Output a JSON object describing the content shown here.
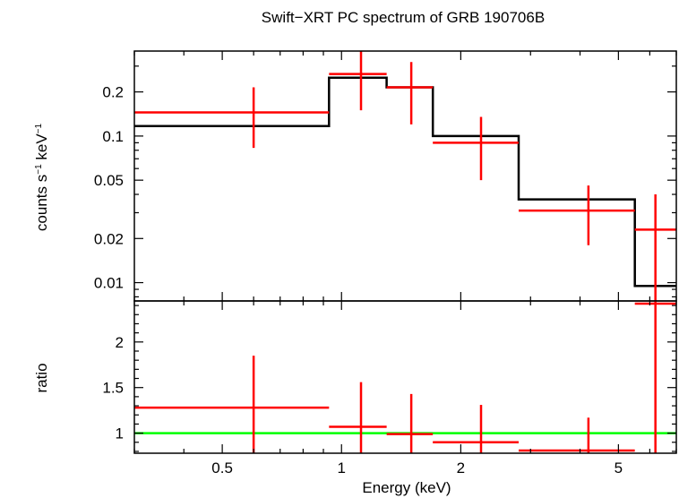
{
  "chart_data": [
    {
      "type": "line",
      "panel": "spectrum",
      "title": "Swift−XRT PC spectrum of GRB 190706B",
      "ylabel_main": "counts s",
      "ylabel_sup1": "−1",
      "ylabel_mid": " keV",
      "ylabel_sup2": "−1",
      "xscale": "log",
      "yscale": "log",
      "xlim": [
        0.3,
        7.0
      ],
      "ylim": [
        0.0075,
        0.38
      ],
      "yticks": [
        0.01,
        0.02,
        0.05,
        0.1,
        0.2
      ],
      "ytick_labels": [
        "0.01",
        "0.02",
        "0.05",
        "0.1",
        "0.2"
      ],
      "data": [
        {
          "x": 0.6,
          "xlo": 0.3,
          "xhi": 0.93,
          "y": 0.145,
          "ylo": 0.083,
          "yhi": 0.215
        },
        {
          "x": 1.12,
          "xlo": 0.93,
          "xhi": 1.3,
          "y": 0.265,
          "ylo": 0.15,
          "yhi": 0.38
        },
        {
          "x": 1.5,
          "xlo": 1.3,
          "xhi": 1.7,
          "y": 0.215,
          "ylo": 0.12,
          "yhi": 0.32
        },
        {
          "x": 2.25,
          "xlo": 1.7,
          "xhi": 2.8,
          "y": 0.09,
          "ylo": 0.05,
          "yhi": 0.135
        },
        {
          "x": 4.2,
          "xlo": 2.8,
          "xhi": 5.5,
          "y": 0.031,
          "ylo": 0.018,
          "yhi": 0.046
        },
        {
          "x": 6.2,
          "xlo": 5.5,
          "xhi": 7.0,
          "y": 0.023,
          "ylo": 0.0075,
          "yhi": 0.04
        }
      ],
      "model": {
        "edges": [
          0.3,
          0.93,
          1.3,
          1.7,
          2.8,
          5.5,
          7.0
        ],
        "values": [
          0.117,
          0.25,
          0.215,
          0.1,
          0.037,
          0.0095
        ]
      }
    },
    {
      "type": "line",
      "panel": "ratio",
      "ylabel": "ratio",
      "xlabel": "Energy (keV)",
      "xscale": "log",
      "xlim": [
        0.3,
        7.0
      ],
      "ylim": [
        0.78,
        2.45
      ],
      "yticks": [
        1,
        1.5,
        2
      ],
      "ytick_labels": [
        "1",
        "1.5",
        "2"
      ],
      "xticks": [
        0.5,
        1,
        2,
        5
      ],
      "xtick_labels": [
        "0.5",
        "1",
        "2",
        "5"
      ],
      "data": [
        {
          "x": 0.6,
          "xlo": 0.3,
          "xhi": 0.93,
          "y": 1.28,
          "ylo": 0.78,
          "yhi": 1.85
        },
        {
          "x": 1.12,
          "xlo": 0.93,
          "xhi": 1.3,
          "y": 1.07,
          "ylo": 0.78,
          "yhi": 1.56
        },
        {
          "x": 1.5,
          "xlo": 1.3,
          "xhi": 1.7,
          "y": 0.99,
          "ylo": 0.78,
          "yhi": 1.43
        },
        {
          "x": 2.25,
          "xlo": 1.7,
          "xhi": 2.8,
          "y": 0.9,
          "ylo": 0.78,
          "yhi": 1.31
        },
        {
          "x": 4.2,
          "xlo": 2.8,
          "xhi": 5.5,
          "y": 0.81,
          "ylo": 0.78,
          "yhi": 1.17
        },
        {
          "x": 6.2,
          "xlo": 5.5,
          "xhi": 7.0,
          "y": 2.42,
          "ylo": 0.78,
          "yhi": 2.45
        }
      ],
      "reference_y": 1
    }
  ],
  "colors": {
    "data": "#ff0000",
    "model": "#000000",
    "reference": "#00ff00",
    "axes": "#000000"
  }
}
